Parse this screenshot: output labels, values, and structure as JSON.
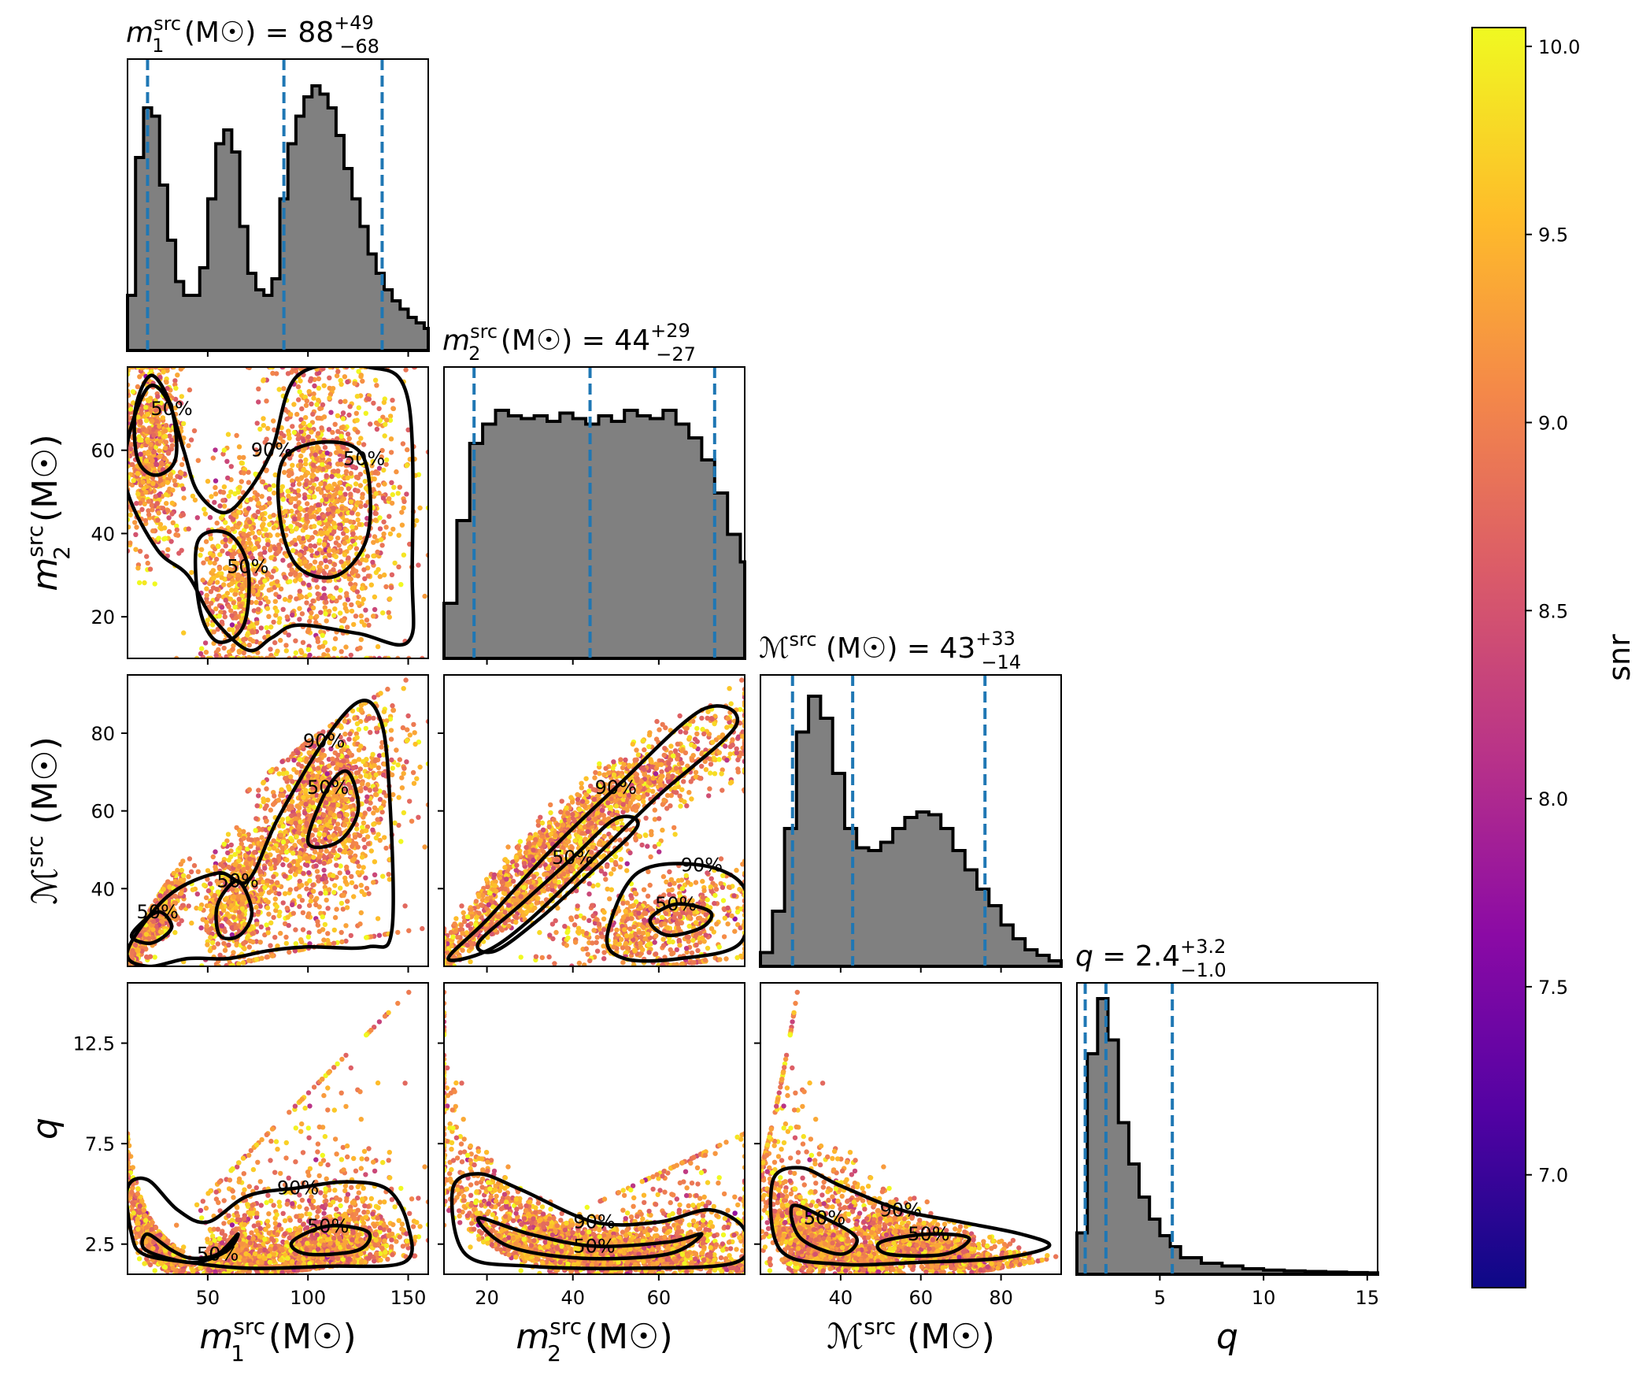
{
  "chart_data": {
    "type": "corner",
    "colors": {
      "histogram_fill": "#808080",
      "histogram_edge": "#000000",
      "quantile_lines": "#1f77b4",
      "contour": "#000000",
      "colormap": "plasma"
    },
    "parameters": [
      {
        "key": "m1",
        "axis_label": "m",
        "axis_sub": "1",
        "axis_sup": "src",
        "unit": "(M☉)",
        "range": [
          10,
          160
        ],
        "ticks": [
          50,
          100,
          150
        ],
        "title_value": "88",
        "title_plus": "+49",
        "title_minus": "−68",
        "quantiles": [
          20,
          88,
          137
        ]
      },
      {
        "key": "m2",
        "axis_label": "m",
        "axis_sub": "2",
        "axis_sup": "src",
        "unit": "(M☉)",
        "range": [
          10,
          80
        ],
        "ticks": [
          20,
          40,
          60
        ],
        "title_value": "44",
        "title_plus": "+29",
        "title_minus": "−27",
        "quantiles": [
          17,
          44,
          73
        ]
      },
      {
        "key": "mc",
        "axis_label": "ℳ",
        "axis_sub": "",
        "axis_sup": "src",
        "unit": "(M☉)",
        "range": [
          20,
          95
        ],
        "ticks": [
          40,
          60,
          80
        ],
        "title_value": "43",
        "title_plus": "+33",
        "title_minus": "−14",
        "quantiles": [
          28,
          43,
          76
        ]
      },
      {
        "key": "q",
        "axis_label": "q",
        "axis_sub": "",
        "axis_sup": "",
        "unit": "",
        "range": [
          1,
          15.5
        ],
        "ticks": [
          5,
          10,
          15
        ],
        "tick_labels_y": [
          "2.5",
          "7.5",
          "12.5"
        ],
        "ticks_y": [
          2.5,
          7.5,
          12.5
        ],
        "title_value": "2.4",
        "title_plus": "+3.2",
        "title_minus": "−1.0",
        "quantiles": [
          1.4,
          2.4,
          5.6
        ]
      }
    ],
    "histograms": {
      "m1": {
        "x": [
          10,
          14,
          18,
          22,
          26,
          30,
          34,
          38,
          42,
          46,
          50,
          54,
          58,
          62,
          66,
          70,
          74,
          78,
          82,
          86,
          90,
          94,
          98,
          102,
          106,
          110,
          114,
          118,
          122,
          126,
          130,
          134,
          138,
          142,
          146,
          150,
          154,
          158
        ],
        "density": [
          0.2,
          0.7,
          0.88,
          0.85,
          0.6,
          0.4,
          0.25,
          0.2,
          0.2,
          0.3,
          0.55,
          0.75,
          0.8,
          0.72,
          0.45,
          0.28,
          0.22,
          0.2,
          0.26,
          0.55,
          0.75,
          0.85,
          0.92,
          0.96,
          0.93,
          0.88,
          0.78,
          0.66,
          0.55,
          0.45,
          0.35,
          0.28,
          0.22,
          0.18,
          0.15,
          0.12,
          0.1,
          0.08
        ]
      },
      "m2": {
        "x": [
          10,
          13,
          16,
          19,
          22,
          25,
          28,
          31,
          34,
          37,
          40,
          43,
          46,
          49,
          52,
          55,
          58,
          61,
          64,
          67,
          70,
          73,
          76,
          79
        ],
        "density": [
          0.2,
          0.5,
          0.78,
          0.85,
          0.9,
          0.88,
          0.87,
          0.88,
          0.86,
          0.89,
          0.87,
          0.85,
          0.88,
          0.86,
          0.9,
          0.88,
          0.87,
          0.9,
          0.85,
          0.8,
          0.72,
          0.6,
          0.45,
          0.35
        ]
      },
      "mc": {
        "x": [
          20,
          23,
          26,
          29,
          32,
          35,
          38,
          41,
          44,
          47,
          50,
          53,
          56,
          59,
          62,
          65,
          68,
          71,
          74,
          77,
          80,
          83,
          86,
          89,
          92,
          95
        ],
        "density": [
          0.05,
          0.2,
          0.5,
          0.85,
          0.98,
          0.9,
          0.7,
          0.5,
          0.43,
          0.42,
          0.45,
          0.5,
          0.54,
          0.56,
          0.55,
          0.5,
          0.42,
          0.35,
          0.28,
          0.22,
          0.15,
          0.1,
          0.06,
          0.04,
          0.02,
          0.01
        ]
      },
      "q": {
        "x": [
          1,
          1.5,
          2,
          2.5,
          3,
          3.5,
          4,
          4.5,
          5,
          5.5,
          6,
          7,
          8,
          9,
          10,
          11,
          12,
          13,
          14,
          15
        ],
        "density": [
          0.15,
          0.8,
          1.0,
          0.85,
          0.55,
          0.4,
          0.28,
          0.2,
          0.14,
          0.1,
          0.06,
          0.04,
          0.03,
          0.02,
          0.015,
          0.012,
          0.01,
          0.008,
          0.006,
          0.005
        ]
      }
    },
    "contour_labels": [
      "50%",
      "90%"
    ],
    "colorbar": {
      "label": "snr",
      "range": [
        6.7,
        10.05
      ],
      "ticks": [
        "7.0",
        "7.5",
        "8.0",
        "8.5",
        "9.0",
        "9.5",
        "10.0"
      ],
      "tick_values": [
        7.0,
        7.5,
        8.0,
        8.5,
        9.0,
        9.5,
        10.0
      ]
    }
  }
}
